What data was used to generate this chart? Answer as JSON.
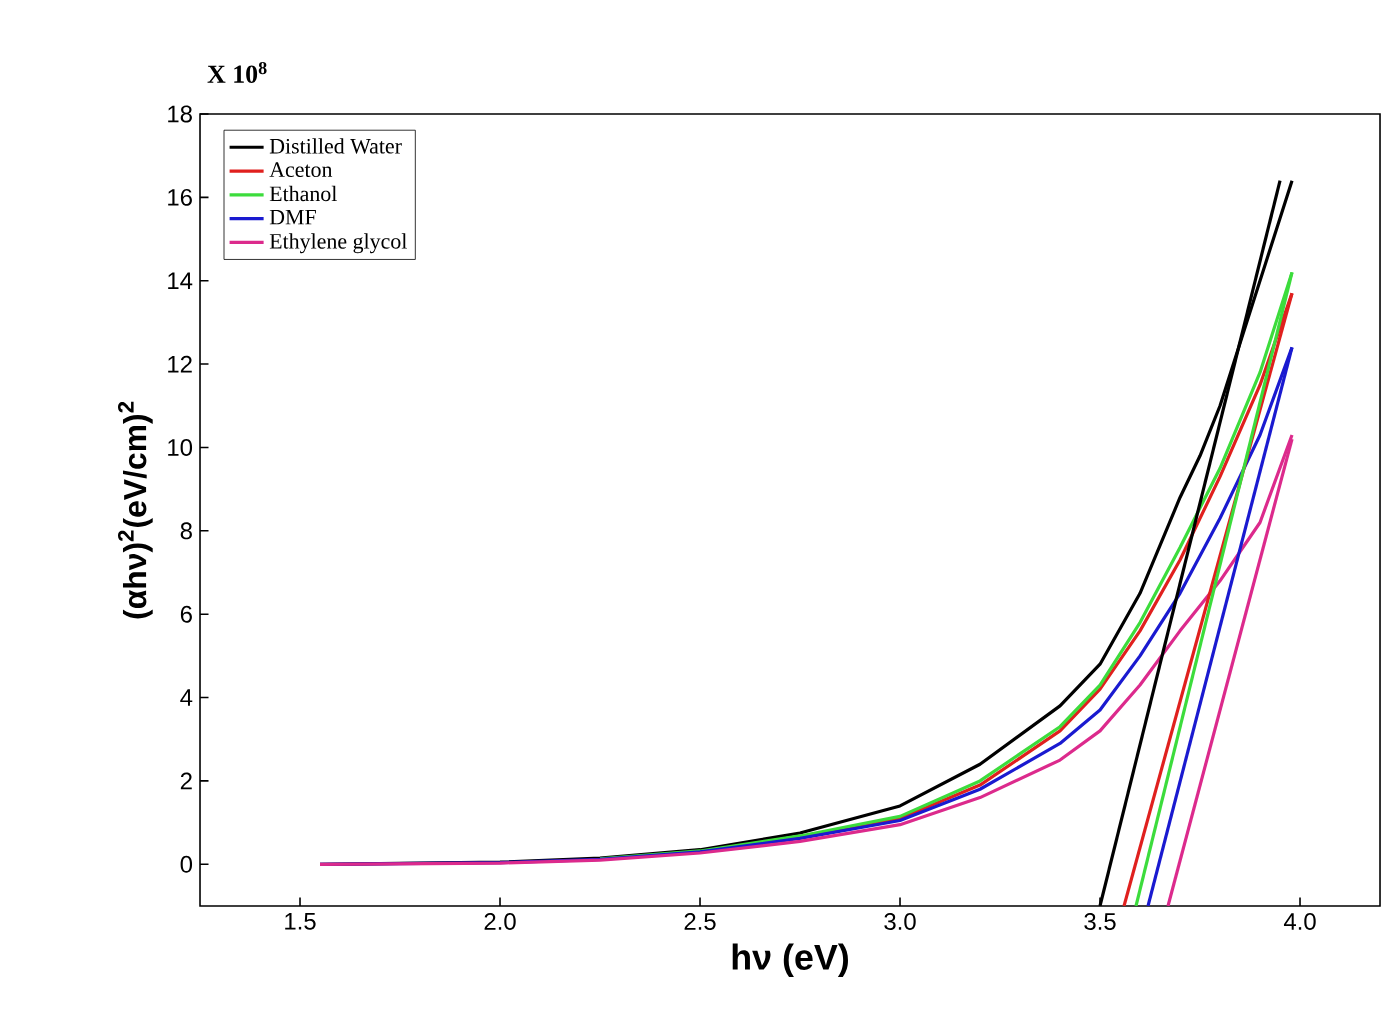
{
  "chart_data": {
    "type": "line",
    "xlabel": "hν (eV)",
    "ylabel": "(αhν)$^{2}$(eV/cm)$^{2}$",
    "annotations": [
      "X 10$^{8}$"
    ],
    "xlim": [
      1.25,
      4.2
    ],
    "xticks": [
      {
        "value": 1.5,
        "label": "1.5"
      },
      {
        "value": 2.0,
        "label": "2.0"
      },
      {
        "value": 2.5,
        "label": "2.5"
      },
      {
        "value": 3.0,
        "label": "3.0"
      },
      {
        "value": 3.5,
        "label": "3.5"
      },
      {
        "value": 4.0,
        "label": "4.0"
      }
    ],
    "ylim": [
      -1,
      18
    ],
    "yticks": [
      0,
      2,
      4,
      6,
      8,
      10,
      12,
      14,
      16,
      18
    ],
    "legend": "top left",
    "series": [
      {
        "name": "Distilled Water",
        "color": "#000000",
        "x": [
          1.55,
          2.0,
          2.25,
          2.5,
          2.75,
          3.0,
          3.2,
          3.4,
          3.5,
          3.6,
          3.7,
          3.75,
          3.8,
          3.85,
          3.9,
          3.95,
          3.98
        ],
        "values": [
          0,
          0.05,
          0.15,
          0.35,
          0.75,
          1.4,
          2.4,
          3.8,
          4.8,
          6.5,
          8.8,
          9.8,
          11,
          12.5,
          14,
          15.5,
          16.4
        ]
      },
      {
        "name": "Aceton",
        "color": "#e0201e",
        "x": [
          2.75,
          3.0,
          3.2,
          3.4,
          3.5,
          3.6,
          3.7,
          3.8,
          3.9,
          3.98
        ],
        "values": [
          0.65,
          1.1,
          1.9,
          3.2,
          4.2,
          5.6,
          7.3,
          9.3,
          11.5,
          13.7
        ]
      },
      {
        "name": "Ethanol",
        "color": "#3cdc3c",
        "x": [
          2.25,
          2.5,
          2.75,
          3.0,
          3.2,
          3.4,
          3.5,
          3.6,
          3.7,
          3.8,
          3.9,
          3.98
        ],
        "values": [
          0.13,
          0.32,
          0.68,
          1.15,
          2.0,
          3.3,
          4.3,
          5.8,
          7.6,
          9.5,
          11.8,
          14.2
        ]
      },
      {
        "name": "DMF",
        "color": "#1a1ad0",
        "x": [
          1.55,
          2.0,
          2.25,
          2.5,
          2.75,
          3.0,
          3.2,
          3.4,
          3.5,
          3.6,
          3.7,
          3.8,
          3.9,
          3.98
        ],
        "values": [
          0,
          0.04,
          0.12,
          0.3,
          0.62,
          1.05,
          1.8,
          2.9,
          3.7,
          5.0,
          6.5,
          8.3,
          10.3,
          12.4
        ]
      },
      {
        "name": "Ethylene glycol",
        "color": "#dc2a8c",
        "x": [
          1.55,
          2.0,
          2.25,
          2.5,
          2.75,
          3.0,
          3.2,
          3.4,
          3.5,
          3.6,
          3.7,
          3.8,
          3.9,
          3.98
        ],
        "values": [
          0,
          0.03,
          0.1,
          0.27,
          0.55,
          0.95,
          1.6,
          2.5,
          3.2,
          4.3,
          5.6,
          6.8,
          8.2,
          10.3
        ]
      },
      {
        "type": "line",
        "color": "#000000",
        "x": [
          3.5,
          3.95
        ],
        "values": [
          -1,
          16.4
        ]
      },
      {
        "type": "line",
        "color": "#e0201e",
        "x": [
          3.56,
          3.98
        ],
        "values": [
          -1,
          13.7
        ]
      },
      {
        "type": "line",
        "color": "#3cdc3c",
        "x": [
          3.59,
          3.98
        ],
        "values": [
          -1,
          14.2
        ]
      },
      {
        "type": "line",
        "color": "#1a1ad0",
        "x": [
          3.62,
          3.98
        ],
        "values": [
          -1,
          12.4
        ]
      },
      {
        "type": "line",
        "color": "#dc2a8c",
        "x": [
          3.67,
          3.98
        ],
        "values": [
          -1,
          10.2
        ]
      }
    ]
  }
}
